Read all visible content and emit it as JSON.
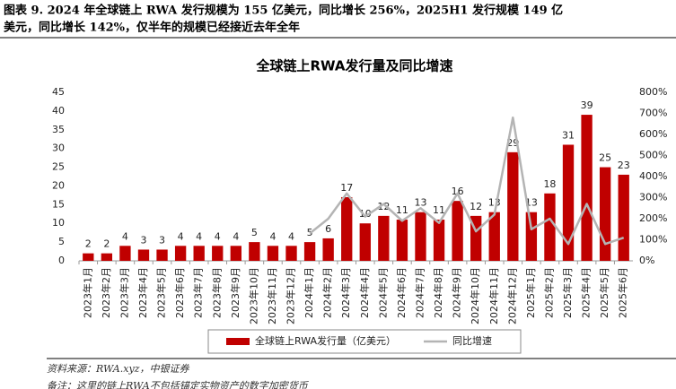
{
  "caption": [
    "图表 9. 2024 年全球链上 RWA 发行规模为 155 亿美元，同比增长 256%，2025H1 发行规模 149 亿",
    "美元，同比增长 142%，仅半年的规模已经接近去年全年"
  ],
  "chart_data": {
    "type": "bar",
    "title": "全球链上RWA发行量及同比增速",
    "categories": [
      "2023年1月",
      "2023年2月",
      "2023年3月",
      "2023年4月",
      "2023年5月",
      "2023年6月",
      "2023年7月",
      "2023年8月",
      "2023年9月",
      "2023年10月",
      "2023年11月",
      "2023年12月",
      "2024年1月",
      "2024年2月",
      "2024年3月",
      "2024年4月",
      "2024年5月",
      "2024年6月",
      "2024年7月",
      "2024年8月",
      "2024年9月",
      "2024年10月",
      "2024年11月",
      "2024年12月",
      "2025年1月",
      "2025年2月",
      "2025年3月",
      "2025年4月",
      "2025年5月",
      "2025年6月"
    ],
    "series": [
      {
        "name": "全球链上RWA发行量（亿美元）",
        "type": "bar",
        "color": "#c00000",
        "values": [
          2,
          2,
          4,
          3,
          3,
          4,
          4,
          4,
          4,
          5,
          4,
          4,
          5,
          6,
          17,
          10,
          12,
          11,
          13,
          11,
          16,
          12,
          13,
          29,
          13,
          18,
          31,
          39,
          25,
          23
        ]
      },
      {
        "name": "同比增速",
        "type": "line",
        "axis": "y2",
        "color": "#b4b4b4",
        "values": [
          null,
          null,
          null,
          null,
          null,
          null,
          null,
          null,
          null,
          null,
          null,
          null,
          130,
          200,
          320,
          210,
          270,
          190,
          250,
          180,
          320,
          140,
          220,
          680,
          150,
          200,
          80,
          270,
          80,
          110
        ]
      }
    ],
    "ylim": [
      0,
      45
    ],
    "yticks": [
      0,
      5,
      10,
      15,
      20,
      25,
      30,
      35,
      40,
      45
    ],
    "y2lim": [
      0,
      800
    ],
    "y2ticks": [
      {
        "value": 0,
        "label": "0%"
      },
      {
        "value": 100,
        "label": "100%"
      },
      {
        "value": 200,
        "label": "200%"
      },
      {
        "value": 300,
        "label": "300%"
      },
      {
        "value": 400,
        "label": "400%"
      },
      {
        "value": 500,
        "label": "500%"
      },
      {
        "value": 600,
        "label": "600%"
      },
      {
        "value": 700,
        "label": "700%"
      },
      {
        "value": 800,
        "label": "800%"
      }
    ],
    "legend": "bottom"
  },
  "source": "资料来源：RWA.xyz，中银证券",
  "note": "备注：这里的链上RWA不包括锚定实物资产的数字加密货币"
}
